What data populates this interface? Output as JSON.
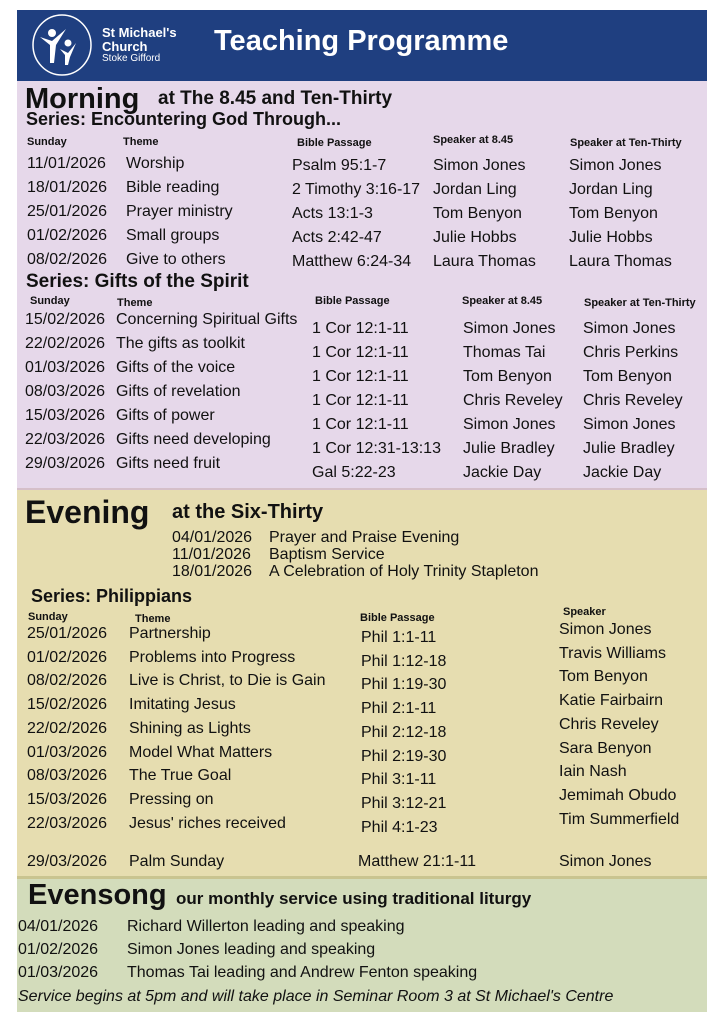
{
  "header": {
    "org_line1": "St Michael's",
    "org_line2": "Church",
    "org_line3": "Stoke Gifford",
    "title": "Teaching Programme",
    "color": "#1f3f80"
  },
  "morning": {
    "title": "Morning",
    "subtitle": "at The 8.45 and Ten-Thirty",
    "series1": {
      "title": "Series: Encountering God Through...",
      "headers": [
        "Sunday",
        "Theme",
        "Bible Passage",
        "Speaker at 8.45",
        "Speaker at Ten-Thirty"
      ],
      "rows": [
        [
          "11/01/2026",
          "Worship",
          "Psalm 95:1-7",
          "Simon Jones",
          "Simon Jones"
        ],
        [
          "18/01/2026",
          "Bible reading",
          "2 Timothy 3:16-17",
          "Jordan Ling",
          "Jordan Ling"
        ],
        [
          "25/01/2026",
          "Prayer ministry",
          "Acts 13:1-3",
          "Tom Benyon",
          "Tom Benyon"
        ],
        [
          "01/02/2026",
          "Small groups",
          "Acts 2:42-47",
          "Julie Hobbs",
          "Julie Hobbs"
        ],
        [
          "08/02/2026",
          "Give to others",
          "Matthew 6:24-34",
          "Laura Thomas",
          "Laura Thomas"
        ]
      ]
    },
    "series2": {
      "title": "Series: Gifts of the Spirit",
      "headers": [
        "Sunday",
        "Theme",
        "Bible Passage",
        "Speaker at 8.45",
        "Speaker at Ten-Thirty"
      ],
      "rows": [
        [
          "15/02/2026",
          "Concerning Spiritual Gifts",
          "1 Cor 12:1-11",
          "Simon Jones",
          "Simon Jones"
        ],
        [
          "22/02/2026",
          "The gifts as toolkit",
          "1 Cor 12:1-11",
          "Thomas Tai",
          "Chris Perkins"
        ],
        [
          "01/03/2026",
          "Gifts of the voice",
          "1 Cor 12:1-11",
          "Tom Benyon",
          "Tom Benyon"
        ],
        [
          "08/03/2026",
          "Gifts of revelation",
          "1 Cor 12:1-11",
          "Chris Reveley",
          "Chris Reveley"
        ],
        [
          "15/03/2026",
          "Gifts of power",
          "1 Cor 12:1-11",
          "Simon Jones",
          "Simon Jones"
        ],
        [
          "22/03/2026",
          "Gifts need developing",
          "1 Cor 12:31-13:13",
          "Julie Bradley",
          "Julie Bradley"
        ],
        [
          "29/03/2026",
          "Gifts need fruit",
          "Gal 5:22-23",
          "Jackie Day",
          "Jackie Day"
        ]
      ]
    }
  },
  "evening": {
    "title": "Evening",
    "subtitle": "at the Six-Thirty",
    "specials": [
      [
        "04/01/2026",
        "Prayer and Praise Evening"
      ],
      [
        "11/01/2026",
        "Baptism Service"
      ],
      [
        "18/01/2026",
        "A Celebration of Holy Trinity Stapleton"
      ]
    ],
    "series": {
      "title": "Series: Philippians",
      "headers": [
        "Sunday",
        "Theme",
        "Bible Passage",
        "Speaker"
      ],
      "rows": [
        [
          "25/01/2026",
          "Partnership",
          "Phil 1:1-11",
          "Simon Jones"
        ],
        [
          "01/02/2026",
          "Problems into Progress",
          "Phil 1:12-18",
          "Travis Williams"
        ],
        [
          "08/02/2026",
          "Live is Christ, to Die is Gain",
          "Phil 1:19-30",
          "Tom Benyon"
        ],
        [
          "15/02/2026",
          "Imitating Jesus",
          "Phil 2:1-11",
          "Katie Fairbairn"
        ],
        [
          "22/02/2026",
          "Shining as Lights",
          "Phil 2:12-18",
          "Chris Reveley"
        ],
        [
          "01/03/2026",
          "Model What Matters",
          "Phil 2:19-30",
          "Sara Benyon"
        ],
        [
          "08/03/2026",
          "The True Goal",
          "Phil 3:1-11",
          "Iain Nash"
        ],
        [
          "15/03/2026",
          "Pressing on",
          "Phil 3:12-21",
          "Jemimah Obudo"
        ],
        [
          "22/03/2026",
          "Jesus' riches received",
          "Phil 4:1-23",
          "Tim Summerfield"
        ]
      ],
      "final": [
        "29/03/2026",
        "Palm Sunday",
        "Matthew 21:1-11",
        "Simon Jones"
      ]
    }
  },
  "evensong": {
    "title": "Evensong",
    "subtitle": "our monthly service using traditional liturgy",
    "rows": [
      [
        "04/01/2026",
        "Richard Willerton leading and speaking"
      ],
      [
        "01/02/2026",
        "Simon Jones leading and speaking"
      ],
      [
        "01/03/2026",
        "Thomas Tai leading and Andrew Fenton speaking"
      ]
    ],
    "note": "Service begins at 5pm and will take place in Seminar Room 3 at St Michael's Centre"
  }
}
